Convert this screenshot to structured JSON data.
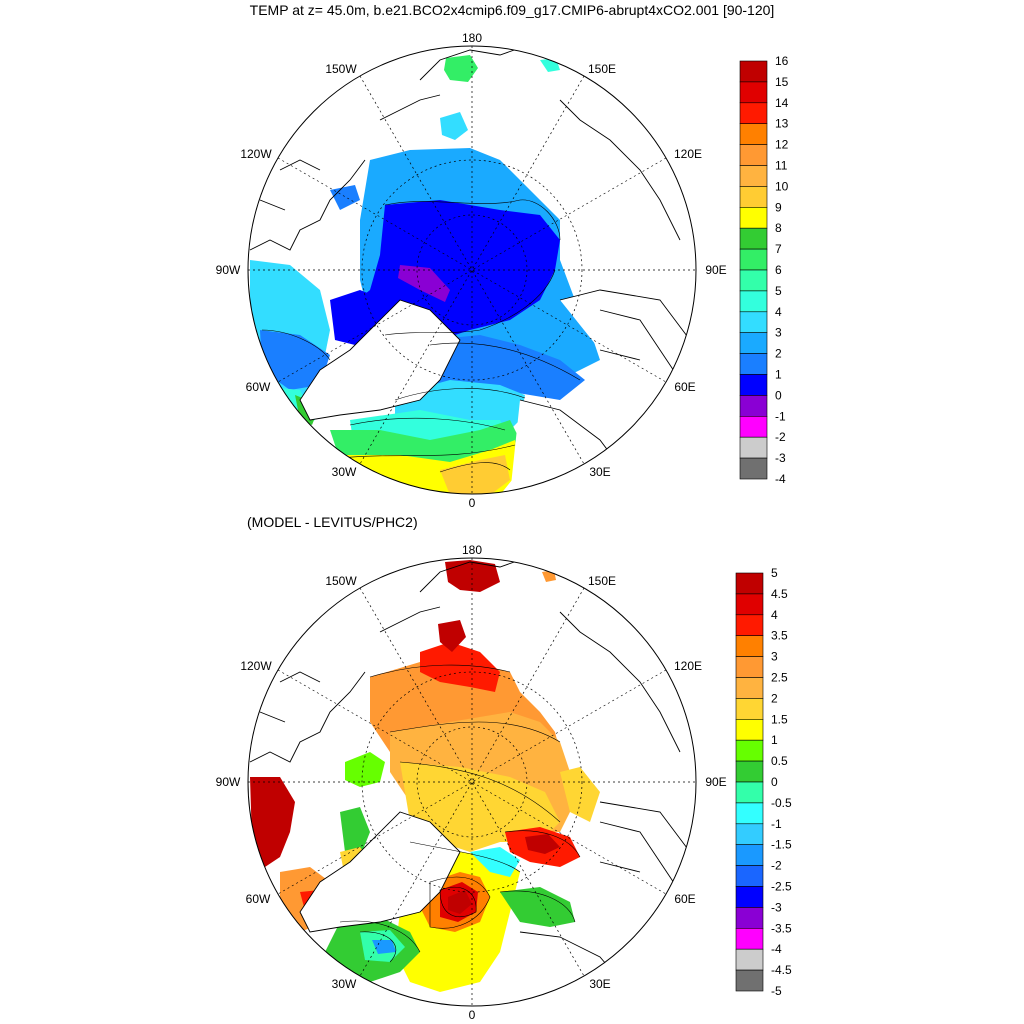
{
  "title": "TEMP at z=  45.0m, b.e21.BCO2x4cmip6.f09_g17.CMIP6-abrupt4xCO2.001 [90-120]",
  "subtitle": "(MODEL - LEVITUS/PHC2)",
  "longitude_labels": {
    "top": "180",
    "upper_left": "150W",
    "upper_right": "150E",
    "mid_upper_left": "120W",
    "mid_upper_right": "120E",
    "left": "90W",
    "right": "90E",
    "lower_left": "60W",
    "lower_right": "60E",
    "bottom_left": "30W",
    "bottom_right": "30E",
    "bottom": "0"
  },
  "colorbar1": {
    "labels": [
      "16",
      "15",
      "14",
      "13",
      "12",
      "11",
      "10",
      "9",
      "8",
      "7",
      "6",
      "5",
      "4",
      "3",
      "2",
      "1",
      "0",
      "-1",
      "-2",
      "-3",
      "-4"
    ],
    "colors": [
      "#c00000",
      "#e00000",
      "#ff1a00",
      "#ff8000",
      "#ff9933",
      "#ffb340",
      "#ffcc33",
      "#ffff00",
      "#33cc33",
      "#33ee66",
      "#33ffaa",
      "#33ffdd",
      "#33ddff",
      "#1aaaff",
      "#1a7fff",
      "#0000ff",
      "#8a00d4",
      "#ff00ff",
      "#cccccc",
      "#707070"
    ]
  },
  "colorbar2": {
    "labels": [
      "5",
      "4.5",
      "4",
      "3.5",
      "3",
      "2.5",
      "2",
      "1.5",
      "1",
      "0.5",
      "0",
      "-0.5",
      "-1",
      "-1.5",
      "-2",
      "-2.5",
      "-3",
      "-3.5",
      "-4",
      "-4.5",
      "-5"
    ],
    "colors": [
      "#c00000",
      "#e00000",
      "#ff1a00",
      "#ff8000",
      "#ff9933",
      "#ffb340",
      "#ffd633",
      "#ffff00",
      "#66ff00",
      "#33cc33",
      "#33ffaa",
      "#33ffff",
      "#33ccff",
      "#1a99ff",
      "#1a66ff",
      "#0000ff",
      "#8a00d4",
      "#ff00ff",
      "#cccccc",
      "#707070"
    ]
  }
}
